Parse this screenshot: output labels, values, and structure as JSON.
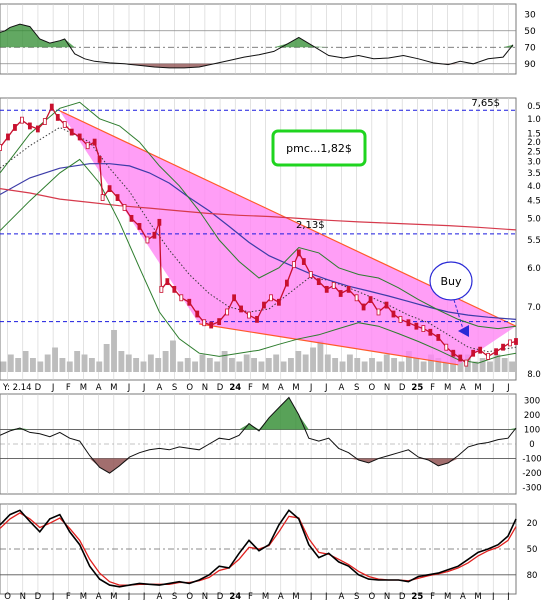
{
  "colors": {
    "frame": "#7a7a7a",
    "grid": "#cfcfcf",
    "accent_blue": "#1a1adf",
    "price_line": "#c8102e",
    "ma_dotted": "#3a3a3a",
    "ma_blue": "#3c3ca8",
    "ma_red": "#d63a4c",
    "bb_green": "#2e7d2e",
    "wedge_fill": "#ff86f4",
    "wedge_line": "#ff5a2a",
    "buy_circle": "#2a2ad6",
    "pmc_box": "#1fd41f",
    "pos_fill": "#2e8b2e",
    "neg_fill": "#8b4a4a",
    "stoch_k": "#000000",
    "stoch_d": "#e0201e",
    "volume": "#bdbdbd"
  },
  "chart_data": [
    {
      "type": "line",
      "panel": "top-oscillator",
      "y_axis": "right",
      "ylim": [
        20,
        100
      ],
      "ticks": [
        30,
        50,
        70,
        90
      ],
      "reference_lines": [
        30,
        50,
        70
      ],
      "series": [
        {
          "x": [
            0,
            5,
            10,
            20,
            30,
            40,
            50,
            60,
            65,
            75,
            85,
            95,
            110,
            125,
            140,
            155,
            170,
            185,
            200,
            215,
            230,
            245,
            260,
            275,
            290,
            300,
            315,
            330,
            345,
            360,
            375,
            390,
            405,
            420,
            435,
            450,
            462,
            475,
            490,
            505,
            515
          ],
          "y": [
            68,
            70,
            74,
            78,
            75,
            60,
            55,
            58,
            60,
            42,
            36,
            33,
            31,
            30,
            28,
            26,
            25,
            25,
            26,
            30,
            34,
            38,
            41,
            45,
            55,
            62,
            51,
            40,
            37,
            40,
            36,
            37,
            40,
            36,
            31,
            29,
            33,
            30,
            36,
            38,
            53
          ]
        }
      ],
      "fills": [
        "positive above 50",
        "negative below 30"
      ]
    },
    {
      "type": "line",
      "panel": "price",
      "y_axis": "right",
      "scale": "log",
      "ylim": [
        0.48,
        8.5
      ],
      "ticks": [
        0.5,
        1.0,
        1.5,
        2.0,
        2.5,
        3.0,
        3.5,
        4.0,
        4.5,
        5.0,
        5.5,
        6.0,
        7.0,
        8.0
      ],
      "xticks": [
        "O",
        "N",
        "D",
        "J",
        "F",
        "M",
        "A",
        "M",
        "J",
        "J",
        "A",
        "S",
        "O",
        "N",
        "D",
        "24",
        "F",
        "M",
        "A",
        "M",
        "J",
        "J",
        "A",
        "S",
        "O",
        "N",
        "D",
        "25",
        "F",
        "M",
        "A",
        "M",
        "J",
        "J"
      ],
      "series": [
        {
          "name": "price",
          "x": [
            0,
            8,
            15,
            22,
            30,
            38,
            45,
            52,
            58,
            65,
            72,
            80,
            88,
            95,
            100,
            103,
            110,
            118,
            125,
            132,
            140,
            148,
            155,
            160,
            162,
            168,
            175,
            182,
            190,
            198,
            205,
            212,
            220,
            228,
            235,
            242,
            250,
            258,
            265,
            272,
            280,
            288,
            295,
            300,
            305,
            312,
            320,
            328,
            335,
            342,
            350,
            358,
            365,
            372,
            380,
            388,
            395,
            402,
            410,
            418,
            425,
            432,
            440,
            448,
            455,
            462,
            468,
            475,
            482,
            490,
            498,
            505,
            512,
            518
          ],
          "y": [
            5.2,
            5.8,
            6.4,
            6.9,
            6.5,
            6.3,
            6.8,
            7.9,
            7.1,
            6.6,
            6.1,
            5.8,
            5.3,
            5.5,
            4.6,
            3.1,
            3.4,
            3.1,
            2.8,
            2.5,
            2.3,
            2.0,
            2.1,
            2.4,
            1.2,
            1.3,
            1.2,
            1.1,
            1.05,
            0.93,
            0.85,
            0.83,
            0.86,
            0.95,
            1.1,
            0.98,
            0.92,
            0.88,
            1.02,
            1.1,
            1.05,
            1.28,
            1.55,
            1.75,
            1.6,
            1.4,
            1.3,
            1.2,
            1.25,
            1.15,
            1.2,
            1.1,
            1.0,
            1.08,
            0.95,
            1.02,
            0.93,
            0.88,
            0.85,
            0.82,
            0.8,
            0.77,
            0.73,
            0.66,
            0.62,
            0.59,
            0.56,
            0.62,
            0.64,
            0.6,
            0.63,
            0.66,
            0.69,
            0.7
          ]
        },
        {
          "name": "ma-short",
          "x": [
            0,
            30,
            60,
            90,
            110,
            130,
            150,
            170,
            190,
            210,
            230,
            250,
            270,
            290,
            310,
            330,
            350,
            370,
            390,
            410,
            430,
            450,
            470,
            490,
            518
          ],
          "y": [
            4.2,
            5.3,
            6.4,
            5.5,
            4.2,
            3.3,
            2.4,
            1.8,
            1.4,
            1.15,
            1.0,
            0.95,
            0.98,
            1.15,
            1.35,
            1.32,
            1.22,
            1.12,
            1.02,
            0.92,
            0.85,
            0.75,
            0.66,
            0.63,
            0.66
          ]
        },
        {
          "name": "ma-medium",
          "x": [
            0,
            30,
            60,
            90,
            110,
            130,
            150,
            170,
            190,
            210,
            230,
            250,
            270,
            290,
            310,
            330,
            350,
            370,
            390,
            410,
            430,
            450,
            470,
            490,
            518
          ],
          "y": [
            3.2,
            3.8,
            4.2,
            4.4,
            4.4,
            4.3,
            4.0,
            3.6,
            3.1,
            2.7,
            2.3,
            1.95,
            1.7,
            1.55,
            1.42,
            1.32,
            1.24,
            1.18,
            1.12,
            1.06,
            1.0,
            0.95,
            0.92,
            0.9,
            0.88
          ]
        },
        {
          "name": "ma-long",
          "x": [
            0,
            30,
            60,
            90,
            120,
            150,
            180,
            210,
            240,
            270,
            300,
            330,
            360,
            390,
            420,
            450,
            480,
            518
          ],
          "y": [
            3.4,
            3.25,
            3.05,
            2.95,
            2.85,
            2.78,
            2.7,
            2.63,
            2.58,
            2.55,
            2.5,
            2.45,
            2.41,
            2.38,
            2.35,
            2.32,
            2.28,
            2.22
          ]
        },
        {
          "name": "bb-upper",
          "x": [
            0,
            30,
            60,
            80,
            100,
            120,
            140,
            160,
            180,
            200,
            220,
            240,
            260,
            280,
            300,
            320,
            340,
            360,
            380,
            400,
            420,
            440,
            460,
            480,
            500,
            518
          ],
          "y": [
            4.0,
            6.0,
            7.8,
            8.3,
            7.0,
            6.5,
            5.5,
            4.3,
            3.5,
            2.7,
            2.0,
            1.6,
            1.35,
            1.5,
            1.85,
            1.75,
            1.5,
            1.4,
            1.35,
            1.22,
            1.08,
            0.97,
            0.88,
            0.82,
            0.8,
            0.82
          ]
        },
        {
          "name": "bb-lower",
          "x": [
            0,
            30,
            60,
            80,
            100,
            120,
            140,
            160,
            180,
            200,
            220,
            240,
            260,
            280,
            300,
            320,
            340,
            360,
            380,
            400,
            420,
            440,
            460,
            480,
            500,
            518
          ],
          "y": [
            2.2,
            3.0,
            4.0,
            4.6,
            3.6,
            2.4,
            1.5,
            0.95,
            0.72,
            0.62,
            0.6,
            0.62,
            0.64,
            0.68,
            0.72,
            0.75,
            0.8,
            0.85,
            0.82,
            0.76,
            0.7,
            0.64,
            0.58,
            0.56,
            0.6,
            0.62
          ]
        }
      ],
      "horizontal_lines": [
        {
          "y": 7.65,
          "label": "7,65$"
        },
        {
          "y": 2.13,
          "label": "2,13$"
        },
        {
          "y": 0.86,
          "label": ""
        }
      ],
      "wedge": {
        "upper": [
          [
            60,
            7.6
          ],
          [
            518,
            0.82
          ]
        ],
        "lower": [
          [
            200,
            0.84
          ],
          [
            460,
            0.55
          ]
        ]
      },
      "annotations": [
        "pmc...1,82$",
        "Buy"
      ],
      "date_caption": "Y: 2.14"
    },
    {
      "type": "bar",
      "panel": "volume",
      "values": [
        3,
        5,
        4,
        6,
        4,
        3,
        5,
        7,
        4,
        3,
        6,
        5,
        4,
        3,
        8,
        12,
        6,
        5,
        4,
        3,
        5,
        4,
        6,
        9,
        3,
        4,
        3,
        5,
        4,
        3,
        6,
        4,
        3,
        5,
        4,
        3,
        4,
        5,
        3,
        4,
        6,
        5,
        7,
        9,
        5,
        4,
        3,
        5,
        4,
        3,
        4,
        3,
        5,
        4,
        3,
        6,
        4,
        3,
        5,
        4,
        3,
        6,
        4,
        5,
        3,
        4,
        3,
        5,
        4,
        3
      ]
    },
    {
      "type": "area",
      "panel": "cci",
      "y_axis": "right",
      "ylim": [
        -330,
        330
      ],
      "ticks": [
        300,
        200,
        100,
        0,
        -100,
        -200,
        -300
      ],
      "reference_lines": [
        100,
        -100
      ],
      "series": [
        {
          "x": [
            0,
            10,
            20,
            30,
            40,
            50,
            60,
            70,
            80,
            90,
            100,
            110,
            120,
            130,
            140,
            150,
            160,
            170,
            180,
            190,
            200,
            210,
            220,
            230,
            240,
            250,
            260,
            270,
            280,
            290,
            300,
            310,
            320,
            330,
            340,
            350,
            360,
            370,
            380,
            390,
            400,
            410,
            420,
            430,
            440,
            450,
            460,
            470,
            480,
            490,
            500,
            510,
            518
          ],
          "y": [
            60,
            90,
            110,
            80,
            70,
            50,
            80,
            40,
            20,
            -80,
            -160,
            -200,
            -150,
            -90,
            -60,
            -40,
            -30,
            -40,
            -20,
            -30,
            -40,
            0,
            40,
            30,
            60,
            140,
            90,
            180,
            250,
            320,
            200,
            40,
            20,
            40,
            -30,
            -60,
            -110,
            -130,
            -100,
            -80,
            -60,
            -40,
            -90,
            -110,
            -150,
            -130,
            -80,
            -20,
            0,
            10,
            30,
            40,
            110
          ]
        }
      ]
    },
    {
      "type": "line",
      "panel": "stochastic",
      "y_axis": "right",
      "ylim": [
        0,
        100
      ],
      "ticks": [
        20,
        50,
        80
      ],
      "reference_lines": [
        20,
        50,
        80
      ],
      "xticks": [
        "O",
        "N",
        "D",
        "J",
        "F",
        "M",
        "A",
        "M",
        "J",
        "J",
        "A",
        "S",
        "O",
        "N",
        "D",
        "24",
        "F",
        "M",
        "A",
        "M",
        "J",
        "J",
        "A",
        "S",
        "O",
        "N",
        "D",
        "25",
        "F",
        "M",
        "A",
        "M",
        "J",
        "J"
      ],
      "series": [
        {
          "name": "%K",
          "x": [
            0,
            10,
            20,
            30,
            40,
            50,
            60,
            70,
            80,
            90,
            100,
            110,
            120,
            130,
            140,
            150,
            160,
            170,
            180,
            190,
            200,
            210,
            220,
            230,
            240,
            250,
            260,
            270,
            280,
            290,
            300,
            310,
            320,
            330,
            340,
            350,
            360,
            370,
            380,
            390,
            400,
            410,
            420,
            430,
            440,
            450,
            460,
            470,
            480,
            490,
            500,
            510,
            518
          ],
          "y": [
            78,
            90,
            95,
            82,
            70,
            85,
            90,
            70,
            55,
            30,
            15,
            8,
            6,
            8,
            10,
            9,
            8,
            10,
            12,
            10,
            14,
            20,
            30,
            28,
            45,
            60,
            48,
            55,
            78,
            95,
            85,
            55,
            40,
            45,
            35,
            30,
            20,
            15,
            14,
            14,
            14,
            12,
            18,
            20,
            22,
            26,
            30,
            38,
            46,
            50,
            55,
            65,
            85
          ]
        },
        {
          "name": "%D",
          "x": [
            0,
            10,
            20,
            30,
            40,
            50,
            60,
            70,
            80,
            90,
            100,
            110,
            120,
            130,
            140,
            150,
            160,
            170,
            180,
            190,
            200,
            210,
            220,
            230,
            240,
            250,
            260,
            270,
            280,
            290,
            300,
            310,
            320,
            330,
            340,
            350,
            360,
            370,
            380,
            390,
            400,
            410,
            420,
            430,
            440,
            450,
            460,
            470,
            480,
            490,
            500,
            510,
            518
          ],
          "y": [
            74,
            85,
            92,
            85,
            75,
            80,
            86,
            74,
            60,
            38,
            22,
            12,
            8,
            8,
            9,
            9,
            9,
            9,
            11,
            11,
            13,
            17,
            25,
            28,
            38,
            52,
            50,
            54,
            70,
            88,
            86,
            62,
            46,
            44,
            38,
            32,
            24,
            18,
            15,
            14,
            14,
            13,
            16,
            19,
            21,
            24,
            28,
            34,
            42,
            48,
            52,
            60,
            76
          ]
        }
      ]
    }
  ],
  "ui": {
    "axis_top": [
      "90",
      "70",
      "50",
      "30"
    ],
    "axis_price": [
      "8.0",
      "7.0",
      "6.0",
      "5.5",
      "5.0",
      "4.5",
      "4.0",
      "3.5",
      "3.0",
      "2.5",
      "2.0",
      "1.5",
      "1.0",
      "0.5"
    ],
    "axis_cci": [
      "300",
      "200",
      "100",
      "0",
      "-100",
      "-200",
      "-300"
    ],
    "axis_stoch": [
      "80",
      "50",
      "20"
    ],
    "month_labels": [
      "O",
      "N",
      "D",
      "J",
      "F",
      "M",
      "A",
      "M",
      "J",
      "J",
      "A",
      "S",
      "O",
      "N",
      "D",
      "24",
      "F",
      "M",
      "A",
      "M",
      "J",
      "J",
      "A",
      "S",
      "O",
      "N",
      "D",
      "25",
      "F",
      "M",
      "A",
      "M",
      "J",
      "J"
    ],
    "price_labels": {
      "top_resistance": "7,65$",
      "mid_resistance": "2,13$",
      "pmc": "pmc...1,82$",
      "buy": "Buy",
      "date_caption": "Y: 2.14"
    }
  }
}
